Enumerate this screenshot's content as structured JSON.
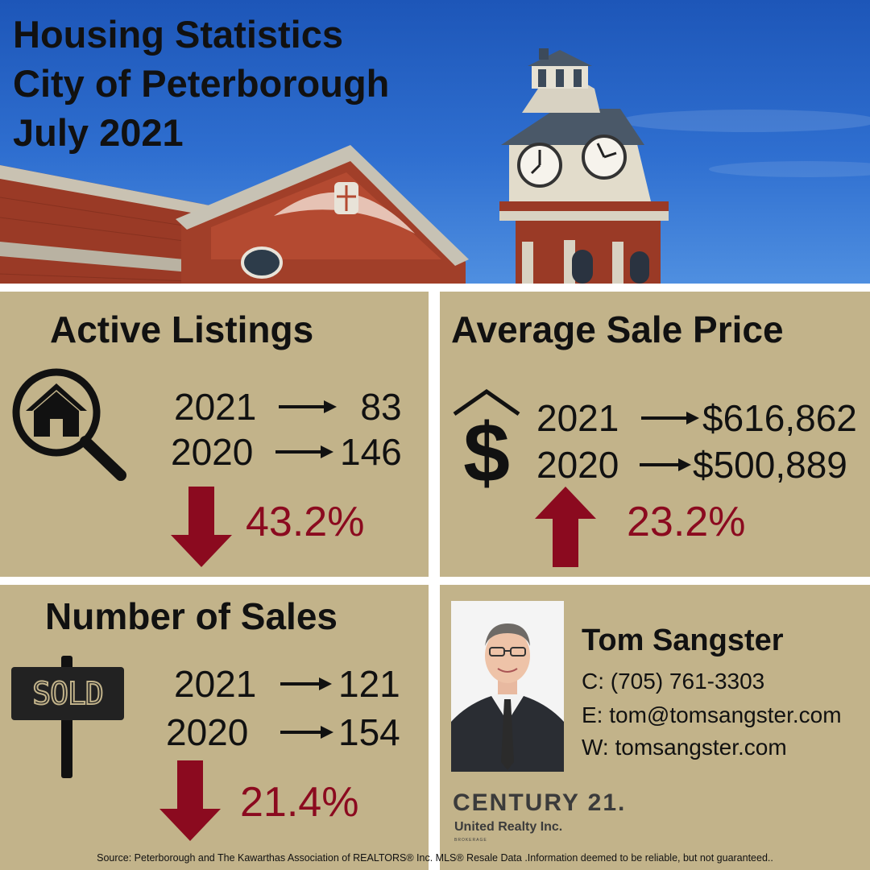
{
  "hero": {
    "title_lines": [
      "Housing Statistics",
      "City of Peterborough",
      "July 2021"
    ]
  },
  "active_listings": {
    "title": "Active Listings",
    "icon": "house-search-icon",
    "rows": [
      {
        "year": "2021",
        "value": "83"
      },
      {
        "year": "2020",
        "value": "146"
      }
    ],
    "change": {
      "direction": "down",
      "percent": "43.2%"
    }
  },
  "average_sale_price": {
    "title": "Average Sale Price",
    "icon": "house-dollar-icon",
    "rows": [
      {
        "year": "2021",
        "value": "$616,862"
      },
      {
        "year": "2020",
        "value": "$500,889"
      }
    ],
    "change": {
      "direction": "up",
      "percent": "23.2%"
    }
  },
  "number_of_sales": {
    "title": "Number of Sales",
    "icon": "sold-sign-icon",
    "sign_text": "SOLD",
    "rows": [
      {
        "year": "2021",
        "value": "121"
      },
      {
        "year": "2020",
        "value": "154"
      }
    ],
    "change": {
      "direction": "down",
      "percent": "21.4%"
    }
  },
  "agent": {
    "name": "Tom Sangster",
    "cell": "C: (705) 761-3303",
    "email": "E: tom@tomsangster.com",
    "web": "W: tomsangster.com",
    "brand": "CENTURY 21.",
    "brand_sub": "United Realty Inc.",
    "brand_tiny": "BROKERAGE"
  },
  "source": "Source: Peterborough and The Kawarthas Association of REALTORS® Inc. MLS® Resale Data .Information deemed to be reliable, but not guaranteed..",
  "colors": {
    "panel_bg": "#c2b38a",
    "accent_red": "#8b0a1f",
    "text": "#111111",
    "sky": "#2f6fd0",
    "brick": "#9a3a26"
  }
}
